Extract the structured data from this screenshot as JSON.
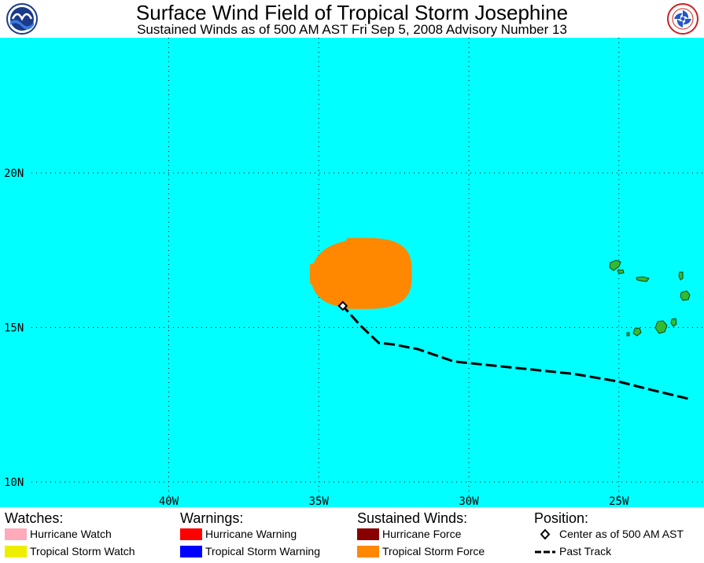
{
  "header": {
    "title": "Surface Wind Field of Tropical Storm Josephine",
    "subtitle": "Sustained Winds as of 500 AM AST Fri Sep 5, 2008    Advisory Number 13",
    "logo_left": "NOAA",
    "logo_right": "NATIONAL WEATHER SERVICE"
  },
  "map": {
    "ocean_color": "#00ffff",
    "grid_color": "#000000",
    "land_color": "#33bb33",
    "wind_field_color": "#ff8800",
    "lat_labels": [
      "20N",
      "15N",
      "10N"
    ],
    "lon_labels": [
      "40W",
      "35W",
      "30W",
      "25W"
    ],
    "storm_center": {
      "lon": -34.2,
      "lat": 15.7
    },
    "wind_field_extent": {
      "lon_min": -35.3,
      "lon_max": -31.9,
      "lat_min": 15.6,
      "lat_max": 17.9
    },
    "past_track": [
      {
        "lon": -22.7,
        "lat": 12.7
      },
      {
        "lon": -24.0,
        "lat": 13.0
      },
      {
        "lon": -25.0,
        "lat": 13.25
      },
      {
        "lon": -26.5,
        "lat": 13.5
      },
      {
        "lon": -28.0,
        "lat": 13.65
      },
      {
        "lon": -29.5,
        "lat": 13.8
      },
      {
        "lon": -30.5,
        "lat": 13.9
      },
      {
        "lon": -31.7,
        "lat": 14.3
      },
      {
        "lon": -32.5,
        "lat": 14.45
      },
      {
        "lon": -33.0,
        "lat": 14.5
      },
      {
        "lon": -33.6,
        "lat": 15.05
      },
      {
        "lon": -34.2,
        "lat": 15.7
      }
    ]
  },
  "legend": {
    "watches": {
      "heading": "Watches:",
      "items": [
        {
          "label": "Hurricane Watch",
          "color": "#ffaabb"
        },
        {
          "label": "Tropical Storm Watch",
          "color": "#eeee00"
        }
      ]
    },
    "warnings": {
      "heading": "Warnings:",
      "items": [
        {
          "label": "Hurricane Warning",
          "color": "#ff0000"
        },
        {
          "label": "Tropical Storm Warning",
          "color": "#0000ff"
        }
      ]
    },
    "winds": {
      "heading": "Sustained Winds:",
      "items": [
        {
          "label": "Hurricane Force",
          "color": "#880000"
        },
        {
          "label": "Tropical Storm Force",
          "color": "#ff8800"
        }
      ]
    },
    "position": {
      "heading": "Position:",
      "items": [
        {
          "label": "Center as of 500 AM AST",
          "icon": "diamond-icon"
        },
        {
          "label": "Past Track",
          "icon": "dashed-line-icon"
        }
      ]
    }
  }
}
